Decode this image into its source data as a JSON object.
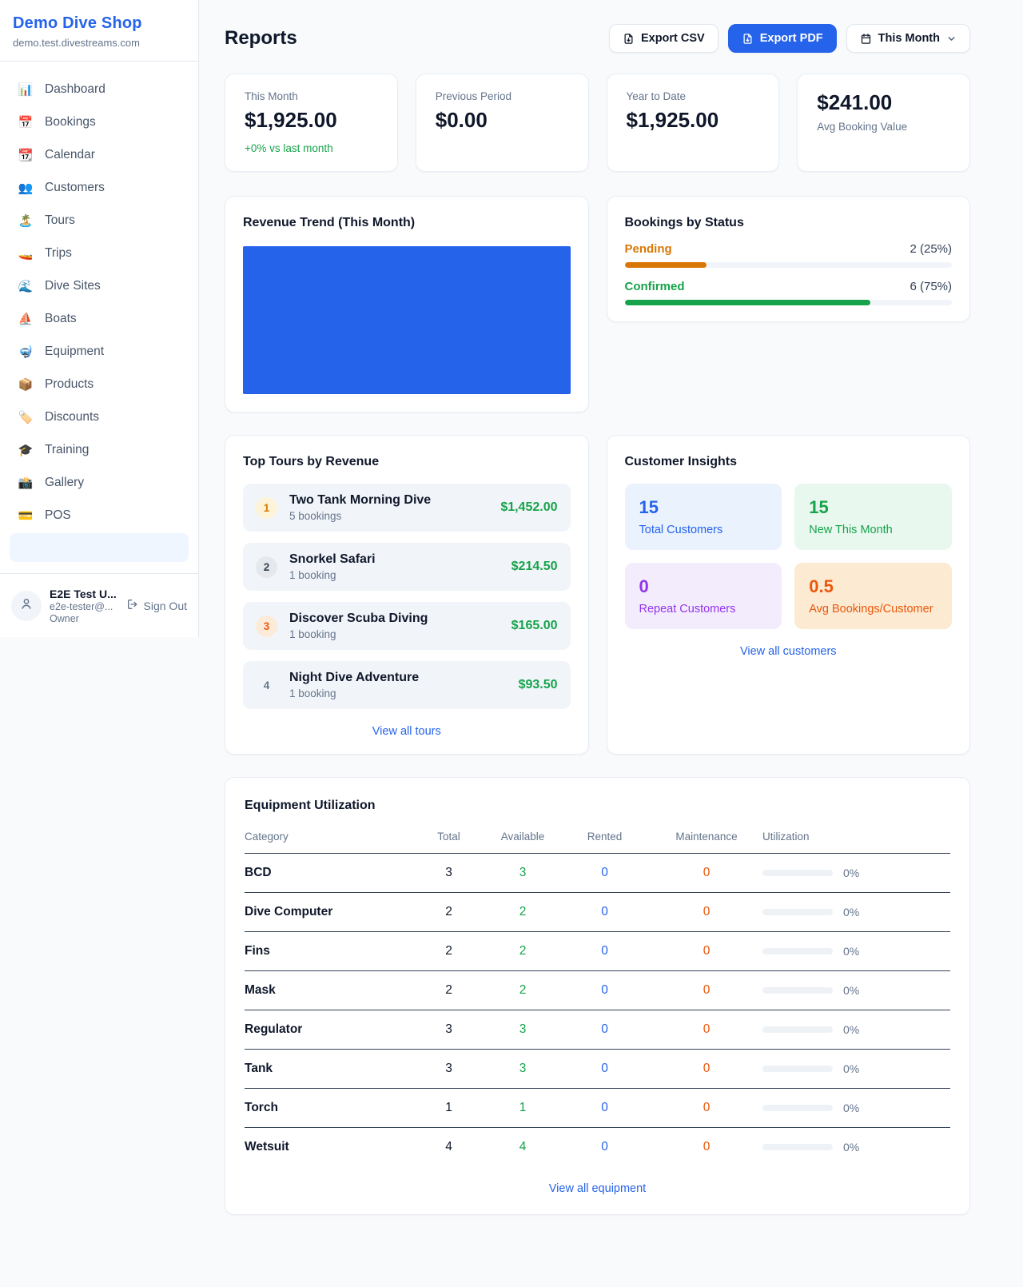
{
  "colors": {
    "accent": "#2563eb",
    "green": "#16a34a",
    "orange": "#d97706",
    "deep_orange": "#ea580c",
    "purple": "#9333ea",
    "chart_bar": "#2563eb"
  },
  "sidebar": {
    "brand": {
      "name": "Demo Dive Shop",
      "domain": "demo.test.divestreams.com"
    },
    "nav": [
      {
        "label": "Dashboard",
        "icon": "📊",
        "icon_name": "bar-chart-icon"
      },
      {
        "label": "Bookings",
        "icon": "📅",
        "icon_name": "calendar-date-icon"
      },
      {
        "label": "Calendar",
        "icon": "📆",
        "icon_name": "tear-off-calendar-icon"
      },
      {
        "label": "Customers",
        "icon": "👥",
        "icon_name": "people-icon"
      },
      {
        "label": "Tours",
        "icon": "🏝️",
        "icon_name": "island-icon"
      },
      {
        "label": "Trips",
        "icon": "🚤",
        "icon_name": "speedboat-icon"
      },
      {
        "label": "Dive Sites",
        "icon": "🌊",
        "icon_name": "wave-icon"
      },
      {
        "label": "Boats",
        "icon": "⛵",
        "icon_name": "sailboat-icon"
      },
      {
        "label": "Equipment",
        "icon": "🤿",
        "icon_name": "diving-mask-icon"
      },
      {
        "label": "Products",
        "icon": "📦",
        "icon_name": "package-icon"
      },
      {
        "label": "Discounts",
        "icon": "🏷️",
        "icon_name": "tag-icon"
      },
      {
        "label": "Training",
        "icon": "🎓",
        "icon_name": "graduation-cap-icon"
      },
      {
        "label": "Gallery",
        "icon": "📸",
        "icon_name": "camera-icon"
      },
      {
        "label": "POS",
        "icon": "💳",
        "icon_name": "credit-card-icon"
      }
    ],
    "user": {
      "name": "E2E Test U...",
      "email": "e2e-tester@...",
      "role": "Owner",
      "sign_out": "Sign Out"
    }
  },
  "header": {
    "title": "Reports",
    "export_csv": "Export CSV",
    "export_pdf": "Export PDF",
    "period": "This Month"
  },
  "stats": [
    {
      "label": "This Month",
      "value": "$1,925.00",
      "delta": "+0% vs last month"
    },
    {
      "label": "Previous Period",
      "value": "$0.00"
    },
    {
      "label": "Year to Date",
      "value": "$1,925.00"
    },
    {
      "label": "Avg Booking Value",
      "value": "$241.00",
      "value_first": true
    }
  ],
  "revenue_trend": {
    "title": "Revenue Trend (This Month)"
  },
  "chart_data": {
    "type": "bar",
    "title": "Revenue Trend (This Month)",
    "categories": [
      "This Month"
    ],
    "values": [
      1925
    ],
    "ylim": [
      0,
      1925
    ],
    "note": "single full-width solid bar, no axes, gridlines or labels visible",
    "bar_color": "#2563eb"
  },
  "bookings_by_status": {
    "title": "Bookings by Status",
    "items": [
      {
        "label": "Pending",
        "count_text": "2 (25%)",
        "pct": 25,
        "color": "#d97706"
      },
      {
        "label": "Confirmed",
        "count_text": "6 (75%)",
        "pct": 75,
        "color": "#16a34a"
      }
    ]
  },
  "top_tours": {
    "title": "Top Tours by Revenue",
    "items": [
      {
        "rank": "1",
        "name": "Two Tank Morning Dive",
        "bookings": "5 bookings",
        "revenue": "$1,452.00",
        "badge_bg": "#fdf3d7",
        "badge_color": "#d97706"
      },
      {
        "rank": "2",
        "name": "Snorkel Safari",
        "bookings": "1 booking",
        "revenue": "$214.50",
        "badge_bg": "#e5e8ec",
        "badge_color": "#334155"
      },
      {
        "rank": "3",
        "name": "Discover Scuba Diving",
        "bookings": "1 booking",
        "revenue": "$165.00",
        "badge_bg": "#fcebd9",
        "badge_color": "#ea580c"
      },
      {
        "rank": "4",
        "name": "Night Dive Adventure",
        "bookings": "1 booking",
        "revenue": "$93.50",
        "badge_bg": "transparent",
        "badge_color": "#64748b"
      }
    ],
    "view_all": "View all tours"
  },
  "customer_insights": {
    "title": "Customer Insights",
    "tiles": [
      {
        "value": "15",
        "label": "Total Customers",
        "bg": "#eaf2fe",
        "color": "#2563eb"
      },
      {
        "value": "15",
        "label": "New This Month",
        "bg": "#e8f8ef",
        "color": "#16a34a"
      },
      {
        "value": "0",
        "label": "Repeat Customers",
        "bg": "#f3ecfd",
        "color": "#9333ea"
      },
      {
        "value": "0.5",
        "label": "Avg Bookings/Customer",
        "bg": "#fcead2",
        "color": "#ea580c"
      }
    ],
    "view_all": "View all customers"
  },
  "equipment": {
    "title": "Equipment Utilization",
    "columns": [
      {
        "key": "category",
        "label": "Category",
        "color": "#0f172a"
      },
      {
        "key": "total",
        "label": "Total",
        "color": "#0f172a"
      },
      {
        "key": "available",
        "label": "Available",
        "color": "#16a34a"
      },
      {
        "key": "rented",
        "label": "Rented",
        "color": "#2563eb"
      },
      {
        "key": "maintenance",
        "label": "Maintenance",
        "color": "#ea580c"
      },
      {
        "key": "utilization",
        "label": "Utilization"
      }
    ],
    "rows": [
      {
        "category": "BCD",
        "total": "3",
        "available": "3",
        "rented": "0",
        "maintenance": "0",
        "utilization": "0%"
      },
      {
        "category": "Dive Computer",
        "total": "2",
        "available": "2",
        "rented": "0",
        "maintenance": "0",
        "utilization": "0%"
      },
      {
        "category": "Fins",
        "total": "2",
        "available": "2",
        "rented": "0",
        "maintenance": "0",
        "utilization": "0%"
      },
      {
        "category": "Mask",
        "total": "2",
        "available": "2",
        "rented": "0",
        "maintenance": "0",
        "utilization": "0%"
      },
      {
        "category": "Regulator",
        "total": "3",
        "available": "3",
        "rented": "0",
        "maintenance": "0",
        "utilization": "0%"
      },
      {
        "category": "Tank",
        "total": "3",
        "available": "3",
        "rented": "0",
        "maintenance": "0",
        "utilization": "0%"
      },
      {
        "category": "Torch",
        "total": "1",
        "available": "1",
        "rented": "0",
        "maintenance": "0",
        "utilization": "0%"
      },
      {
        "category": "Wetsuit",
        "total": "4",
        "available": "4",
        "rented": "0",
        "maintenance": "0",
        "utilization": "0%"
      }
    ],
    "view_all": "View all equipment"
  }
}
